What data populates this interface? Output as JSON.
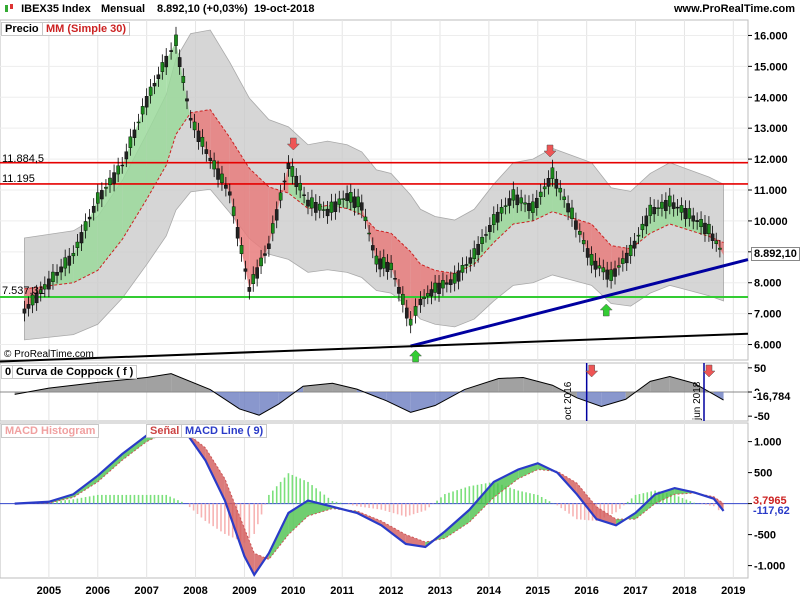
{
  "header": {
    "symbol": "IBEX35 Index",
    "period": "Mensual",
    "last_value": "8.892,10 (+0,03%)",
    "date": "19-oct-2018",
    "site": "www.ProRealTime.com"
  },
  "price_panel": {
    "label_price": "Precio",
    "label_ma": "MM (Simple 30)",
    "level_1": "11.884,5",
    "level_2": "11.195",
    "level_3": "7.537,31",
    "current_price": "8.892,10",
    "watermark": "© ProRealTime.com"
  },
  "coppock_panel": {
    "label": "Curva de Coppock ( f )",
    "zero_label": "0",
    "value": "-16,784",
    "marker_1": "oct 2016",
    "marker_2": "jun 2018",
    "ticks": [
      "50",
      "0",
      "-50"
    ]
  },
  "macd_panel": {
    "label_histogram": "MACD Histogram",
    "label_signal": "Señal",
    "label_macd": "MACD Line ( 9)",
    "value_1": "3,7965",
    "value_2": "-117,62",
    "ticks": [
      "1.000",
      "500",
      "0",
      "-500",
      "-1.000"
    ]
  },
  "colors": {
    "up_fill": "#9bd99b",
    "down_fill": "#e77c7c",
    "band": "#c8c8c8",
    "resistance": "#e60000",
    "support": "#33cc33",
    "trend": "#0000a0",
    "longtrend": "#000000",
    "macd_line": "#2a3bc8",
    "coppock_neg": "#6c7dc0",
    "coppock_pos": "#8a8a8a"
  },
  "chart_data": [
    {
      "type": "line",
      "title": "IBEX35 Index",
      "x": [
        2004.5,
        2005,
        2005.5,
        2006,
        2006.5,
        2007,
        2007.4,
        2007.6,
        2007.9,
        2008.3,
        2008.7,
        2009.1,
        2009.5,
        2009.9,
        2010.3,
        2010.7,
        2011.1,
        2011.4,
        2011.7,
        2012.0,
        2012.4,
        2012.6,
        2012.9,
        2013.3,
        2013.7,
        2014.1,
        2014.5,
        2014.9,
        2015.3,
        2015.7,
        2016.1,
        2016.5,
        2016.9,
        2017.3,
        2017.7,
        2018.1,
        2018.5,
        2018.8
      ],
      "series": [
        {
          "name": "Precio",
          "values": [
            7100,
            8000,
            8900,
            10700,
            11800,
            13900,
            15200,
            15800,
            13300,
            12000,
            10900,
            7800,
            9200,
            11800,
            10600,
            10300,
            10800,
            10500,
            8700,
            8500,
            6700,
            7400,
            7800,
            8100,
            8900,
            10000,
            10800,
            10400,
            11500,
            10200,
            8700,
            8200,
            9000,
            10300,
            10600,
            10200,
            9700,
            8892
          ]
        },
        {
          "name": "MM (Simple 30)",
          "values": [
            7800,
            7900,
            8000,
            8400,
            9400,
            10700,
            11800,
            12800,
            13500,
            13600,
            12700,
            11700,
            11100,
            10900,
            10400,
            10500,
            10400,
            10200,
            9700,
            9600,
            9000,
            8600,
            8400,
            8300,
            8600,
            9300,
            9900,
            10000,
            10300,
            10100,
            9900,
            9200,
            9100,
            9600,
            9900,
            9700,
            9500,
            9300
          ]
        }
      ],
      "horizontal_levels": [
        11884.5,
        11195,
        7537.31
      ],
      "ylim": [
        5500,
        16500
      ],
      "y_ticks": [
        "6.000",
        "7.000",
        "8.000",
        "9.000",
        "10.000",
        "11.000",
        "12.000",
        "13.000",
        "14.000",
        "15.000",
        "16.000"
      ],
      "x_ticks": [
        "2005",
        "2006",
        "2007",
        "2008",
        "2009",
        "2010",
        "2011",
        "2012",
        "2013",
        "2014",
        "2015",
        "2016",
        "2017",
        "2018",
        "2019"
      ]
    },
    {
      "type": "area",
      "title": "Curva de Coppock ( f )",
      "x": [
        2004.3,
        2005,
        2006,
        2007,
        2007.5,
        2008.3,
        2008.9,
        2009.3,
        2009.7,
        2010.2,
        2010.8,
        2011.3,
        2011.9,
        2012.4,
        2012.9,
        2013.5,
        2014.2,
        2014.7,
        2015.3,
        2015.8,
        2016.3,
        2016.8,
        2017.3,
        2017.7,
        2018.2,
        2018.6,
        2018.8
      ],
      "values": [
        -5,
        8,
        20,
        30,
        38,
        5,
        -35,
        -48,
        -25,
        12,
        18,
        6,
        -18,
        -42,
        -28,
        5,
        28,
        30,
        14,
        -12,
        -30,
        -15,
        22,
        32,
        18,
        -5,
        -16.784
      ],
      "ylim": [
        -60,
        60
      ]
    },
    {
      "type": "line",
      "title": "MACD",
      "x": [
        2004.3,
        2005,
        2005.5,
        2006,
        2006.5,
        2007,
        2007.4,
        2007.8,
        2008.2,
        2008.6,
        2009.0,
        2009.2,
        2009.5,
        2009.9,
        2010.3,
        2010.8,
        2011.3,
        2011.8,
        2012.3,
        2012.7,
        2013.1,
        2013.6,
        2014.1,
        2014.6,
        2015.0,
        2015.4,
        2015.8,
        2016.2,
        2016.6,
        2017.0,
        2017.4,
        2017.8,
        2018.2,
        2018.6,
        2018.8
      ],
      "series": [
        {
          "name": "MACD Line ( 9)",
          "values": [
            0,
            30,
            150,
            450,
            800,
            1100,
            1250,
            1150,
            700,
            50,
            -850,
            -1150,
            -800,
            -150,
            50,
            -50,
            -150,
            -350,
            -650,
            -700,
            -450,
            -100,
            350,
            550,
            650,
            500,
            150,
            -250,
            -350,
            -150,
            150,
            250,
            180,
            80,
            -117.62
          ]
        },
        {
          "name": "Señal",
          "values": [
            0,
            10,
            100,
            350,
            700,
            1000,
            1150,
            1150,
            900,
            400,
            -400,
            -800,
            -900,
            -500,
            -200,
            -80,
            -120,
            -280,
            -500,
            -620,
            -560,
            -300,
            100,
            400,
            550,
            520,
            330,
            -50,
            -250,
            -250,
            0,
            150,
            170,
            110,
            3.7965
          ]
        }
      ],
      "ylim": [
        -1200,
        1300
      ],
      "y_ticks": [
        "1.000",
        "500",
        "0",
        "-500",
        "-1.000"
      ]
    }
  ]
}
